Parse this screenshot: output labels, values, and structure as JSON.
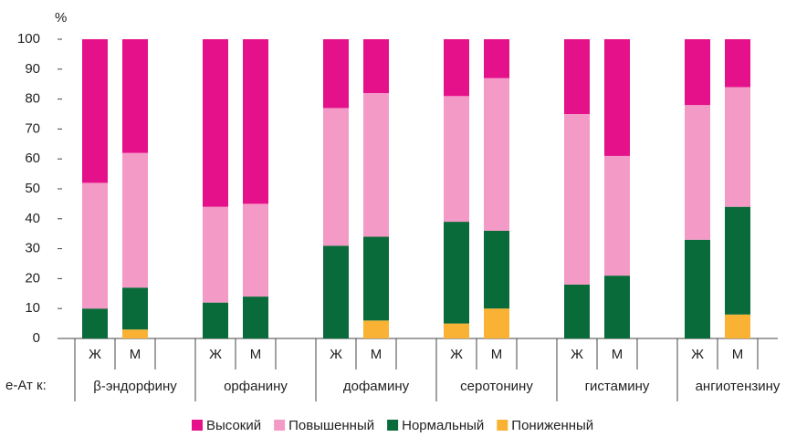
{
  "chart_data": {
    "type": "stacked_bar",
    "y_axis_label": "%",
    "group_axis_label": "е-Ат к:",
    "categories": [
      "Ж",
      "М",
      "Ж",
      "М",
      "Ж",
      "М",
      "Ж",
      "М",
      "Ж",
      "М",
      "Ж",
      "М"
    ],
    "groups": [
      "β-эндорфину",
      "орфанину",
      "дофамину",
      "серотонину",
      "гистамину",
      "ангиотензину"
    ],
    "series": [
      {
        "name": "Высокий",
        "color": "#e5118a",
        "values": [
          48,
          38,
          56,
          55,
          23,
          18,
          19,
          13,
          25,
          39,
          22,
          16
        ]
      },
      {
        "name": "Повышенный",
        "color": "#f49ac6",
        "values": [
          42,
          45,
          32,
          31,
          46,
          48,
          42,
          51,
          57,
          40,
          45,
          40
        ]
      },
      {
        "name": "Нормальный",
        "color": "#0a6b3a",
        "values": [
          10,
          14,
          12,
          14,
          31,
          28,
          34,
          26,
          18,
          21,
          33,
          36
        ]
      },
      {
        "name": "Пониженный",
        "color": "#f9b233",
        "values": [
          0,
          3,
          0,
          0,
          0,
          6,
          5,
          10,
          0,
          0,
          0,
          8
        ]
      }
    ],
    "ylim": [
      0,
      100
    ],
    "yticks": [
      0,
      10,
      20,
      30,
      40,
      50,
      60,
      70,
      80,
      90,
      100
    ],
    "grid": false,
    "legend": "bottom"
  }
}
